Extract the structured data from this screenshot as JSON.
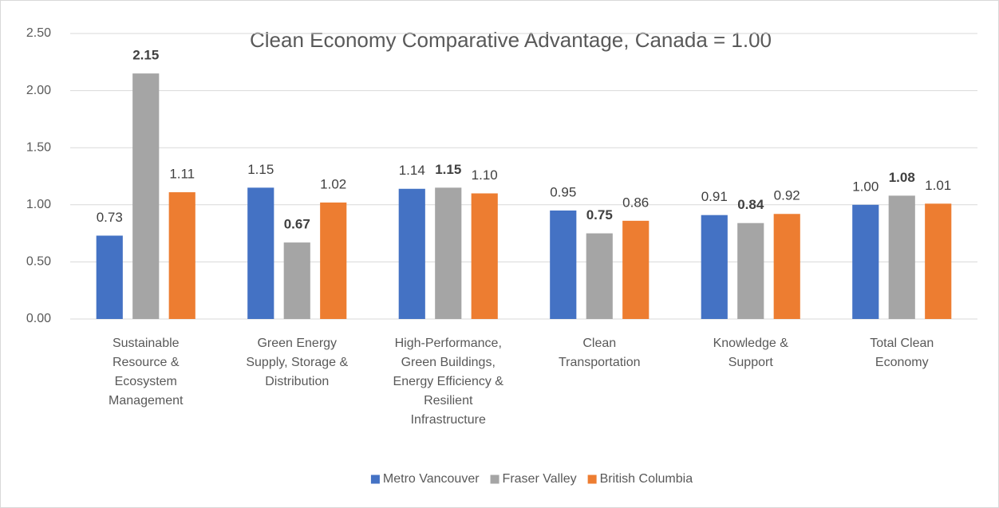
{
  "chart_data": {
    "type": "bar",
    "title": "Clean Economy Comparative Advantage, Canada = 1.00",
    "categories": [
      "Sustainable Resource & Ecosystem Management",
      "Green Energy Supply, Storage & Distribution",
      "High-Performance, Green Buildings, Energy Efficiency & Resilient Infrastructure",
      "Clean Transportation",
      "Knowledge & Support",
      "Total Clean Economy"
    ],
    "series": [
      {
        "name": "Metro Vancouver",
        "color": "#4472c4",
        "bold": false,
        "values": [
          0.73,
          1.15,
          1.14,
          0.95,
          0.91,
          1.0
        ],
        "value_labels": [
          "0.73",
          "1.15",
          "1.14",
          "0.95",
          "0.91",
          "1.00"
        ]
      },
      {
        "name": "Fraser Valley",
        "color": "#a5a5a5",
        "bold": true,
        "values": [
          2.15,
          0.67,
          1.15,
          0.75,
          0.84,
          1.08
        ],
        "value_labels": [
          "2.15",
          "0.67",
          "1.15",
          "0.75",
          "0.84",
          "1.08"
        ]
      },
      {
        "name": "British Columbia",
        "color": "#ed7d31",
        "bold": false,
        "values": [
          1.11,
          1.02,
          1.1,
          0.86,
          0.92,
          1.01
        ],
        "value_labels": [
          "1.11",
          "1.02",
          "1.10",
          "0.86",
          "0.92",
          "1.01"
        ]
      }
    ],
    "ylim": [
      0,
      2.5
    ],
    "yticks": [
      {
        "value": 0,
        "label": "0.00"
      },
      {
        "value": 0.5,
        "label": "0.50"
      },
      {
        "value": 1,
        "label": "1.00"
      },
      {
        "value": 1.5,
        "label": "1.50"
      },
      {
        "value": 2,
        "label": "2.00"
      },
      {
        "value": 2.5,
        "label": "2.50"
      }
    ],
    "grid": true,
    "legend": "bottom"
  }
}
